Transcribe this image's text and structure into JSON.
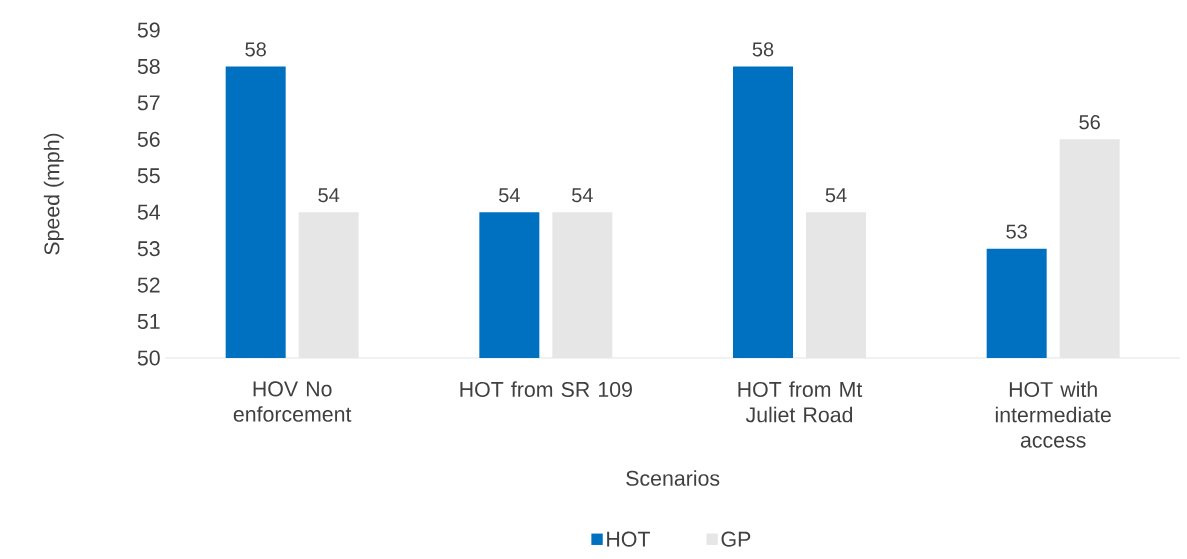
{
  "chart_data": {
    "type": "bar",
    "xlabel": "Scenarios",
    "ylabel": "Speed (mph)",
    "categories": [
      "HOV No enforcement",
      "HOT from SR 109",
      "HOT from Mt Juliet Road",
      "HOT with intermediate access"
    ],
    "series": [
      {
        "name": "HOT",
        "color": "#0070c0",
        "values": [
          58,
          54,
          58,
          53
        ]
      },
      {
        "name": "GP",
        "color": "#e7e6e6",
        "values": [
          54,
          54,
          54,
          56
        ]
      }
    ],
    "ylim": [
      50,
      59
    ],
    "yticks": [
      50,
      51,
      52,
      53,
      54,
      55,
      56,
      57,
      58,
      59
    ],
    "data_labels": true,
    "legend": "bottom"
  }
}
